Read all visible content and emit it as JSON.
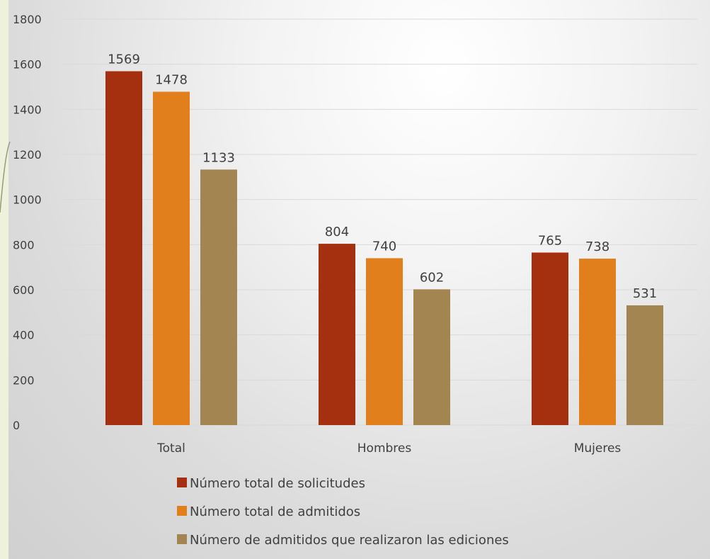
{
  "colors": {
    "series_1": "#a5300f",
    "series_2": "#e07f1b",
    "series_3": "#a38551"
  },
  "chart_data": {
    "type": "bar",
    "title": "",
    "xlabel": "",
    "ylabel": "",
    "ylim": [
      0,
      1800
    ],
    "yticks": [
      0,
      200,
      400,
      600,
      800,
      1000,
      1200,
      1400,
      1600,
      1800
    ],
    "grid": true,
    "legend_position": "bottom",
    "categories": [
      "Total",
      "Hombres",
      "Mujeres"
    ],
    "series": [
      {
        "name": "Número total de solicitudes",
        "values": [
          1569,
          804,
          765
        ]
      },
      {
        "name": "Número total de admitidos",
        "values": [
          1478,
          740,
          738
        ]
      },
      {
        "name": "Número de admitidos que realizaron las ediciones",
        "values": [
          1133,
          602,
          531
        ]
      }
    ]
  }
}
